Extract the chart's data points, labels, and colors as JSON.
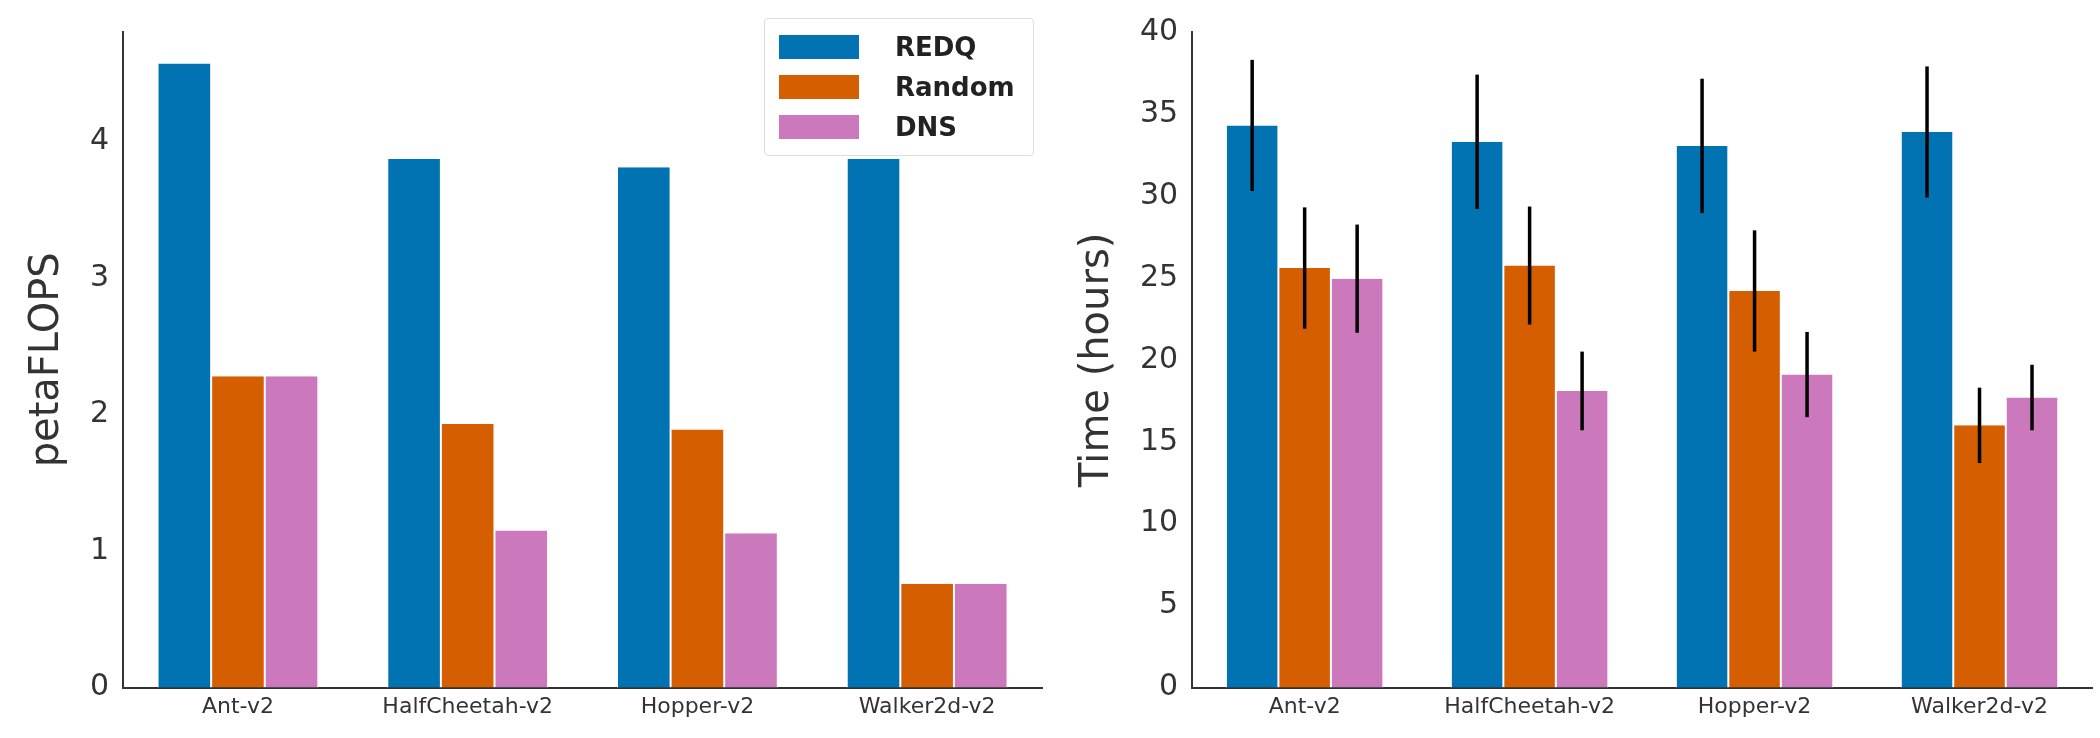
{
  "chart_data": [
    {
      "type": "bar",
      "ylabel": "petaFLOPS",
      "categories": [
        "Ant-v2",
        "HalfCheetah-v2",
        "Hopper-v2",
        "Walker2d-v2"
      ],
      "series": [
        {
          "name": "REDQ",
          "color": "#0173b2",
          "values": [
            4.57,
            3.87,
            3.81,
            3.87
          ]
        },
        {
          "name": "Random",
          "color": "#d55e00",
          "values": [
            2.28,
            1.93,
            1.89,
            0.76
          ]
        },
        {
          "name": "DNS",
          "color": "#cc78bc",
          "values": [
            2.28,
            1.15,
            1.13,
            0.76
          ]
        }
      ],
      "ylim": [
        0,
        4.8
      ],
      "yticks": [
        0,
        1,
        2,
        3,
        4
      ],
      "grid": false,
      "legend": "top right"
    },
    {
      "type": "bar",
      "ylabel": "Time (hours)",
      "categories": [
        "Ant-v2",
        "HalfCheetah-v2",
        "Hopper-v2",
        "Walker2d-v2"
      ],
      "series": [
        {
          "color": "#0173b2",
          "values": [
            34.3,
            33.3,
            33.05,
            33.9
          ],
          "errors": [
            4,
            4.1,
            4.1,
            4
          ]
        },
        {
          "color": "#d55e00",
          "values": [
            25.6,
            25.75,
            24.2,
            16.0
          ],
          "errors": [
            3.7,
            3.6,
            3.7,
            2.3
          ]
        },
        {
          "color": "#cc78bc",
          "values": [
            24.95,
            18.1,
            19.1,
            17.7
          ],
          "errors": [
            3.3,
            2.4,
            2.6,
            2.0
          ]
        }
      ],
      "ylim": [
        0,
        40
      ],
      "yticks": [
        0,
        5,
        10,
        15,
        20,
        25,
        30,
        35,
        40
      ],
      "grid": false,
      "legend": false
    }
  ]
}
